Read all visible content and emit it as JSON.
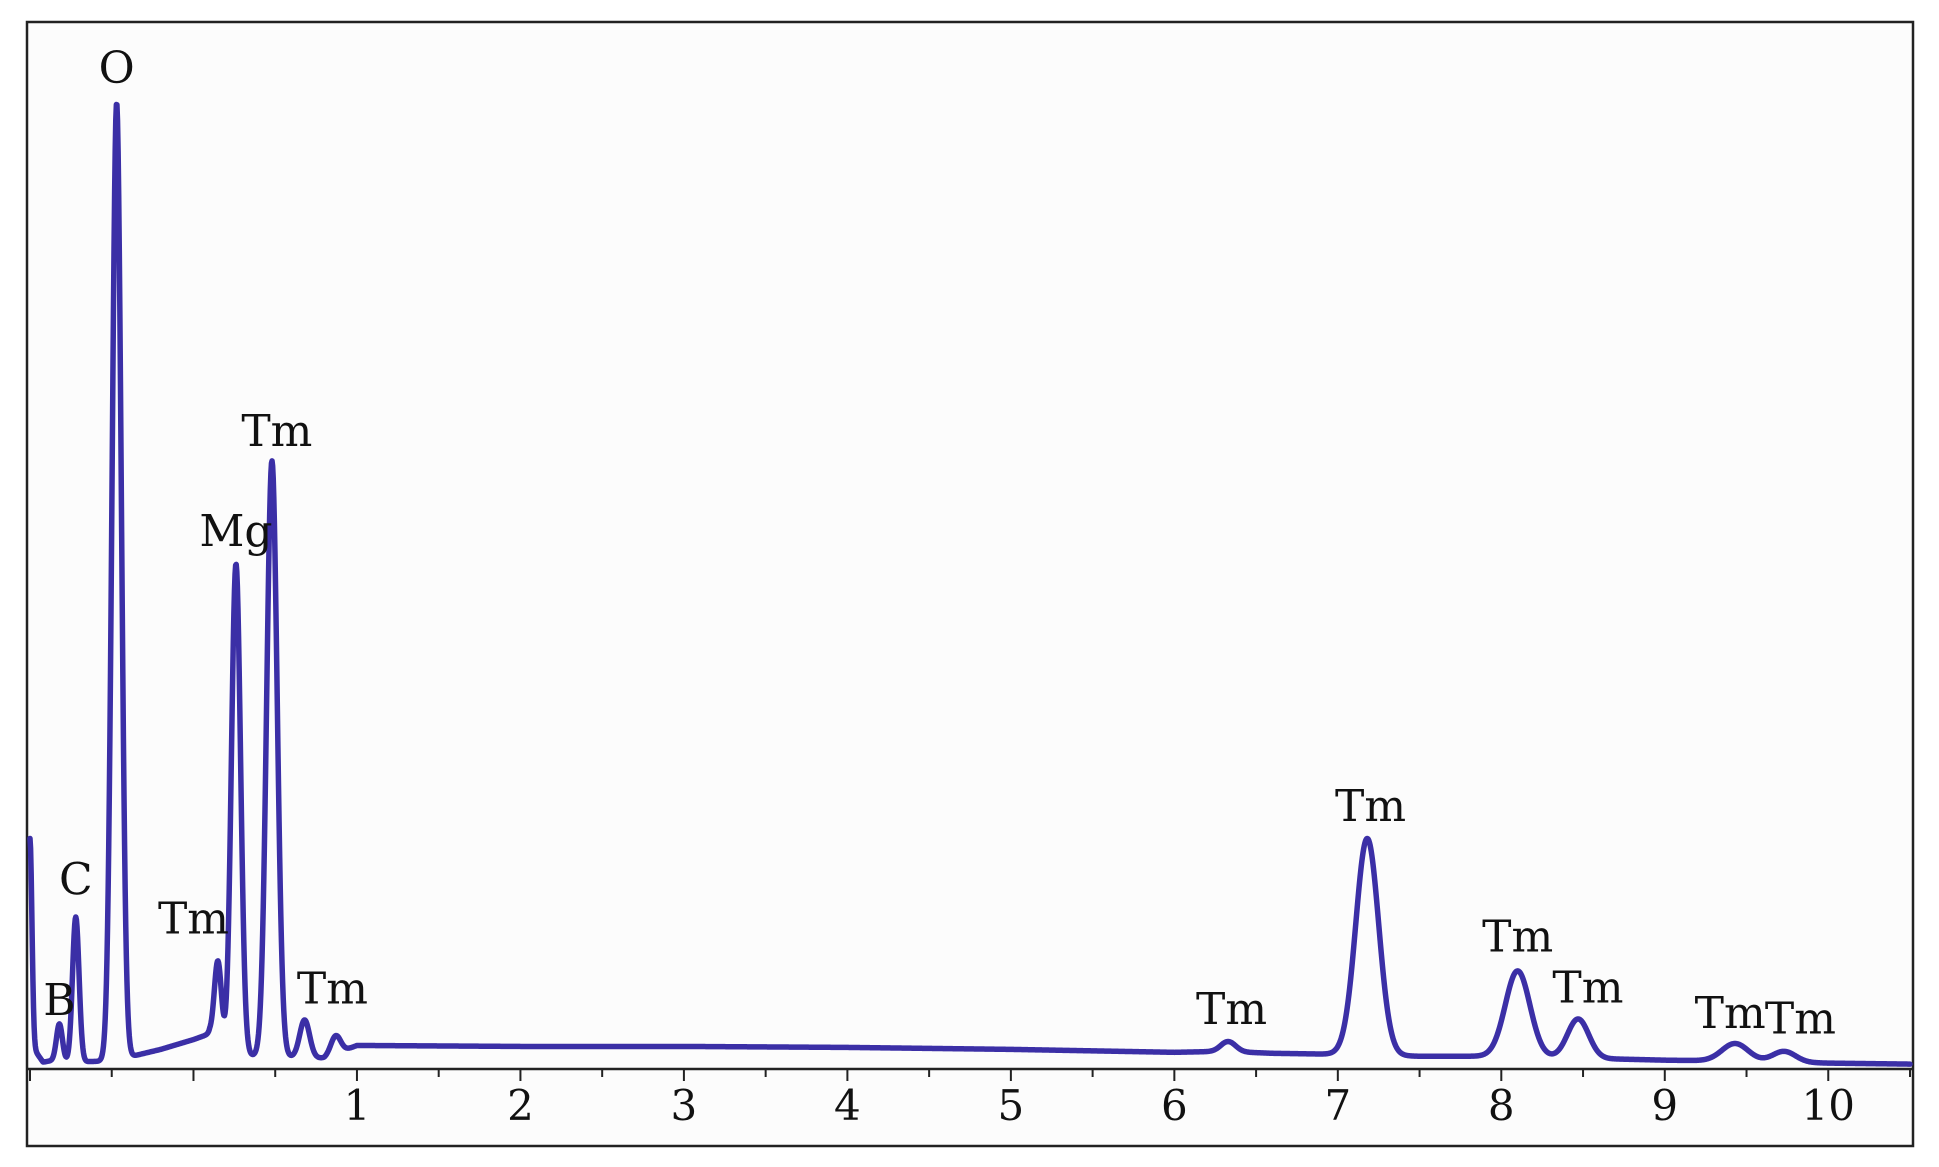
{
  "chart_data": {
    "type": "line",
    "title": "",
    "xlabel": "",
    "ylabel": "",
    "xlim": [
      -1.0,
      10.5
    ],
    "ylim": [
      0,
      100
    ],
    "grid": false,
    "legend": "none",
    "x_ticks": [
      "1",
      "2",
      "3",
      "4",
      "5",
      "6",
      "7",
      "8",
      "9",
      "10"
    ],
    "x_tick_values": [
      1,
      2,
      3,
      4,
      5,
      6,
      7,
      8,
      9,
      10
    ],
    "colors": {
      "line": "#3b2fa6",
      "axis": "#222222",
      "background": "#fcfcfc"
    },
    "baseline": [
      [
        -1.0,
        2.6
      ],
      [
        -0.92,
        0.7
      ],
      [
        -0.85,
        0.9
      ],
      [
        -0.75,
        0.7
      ],
      [
        -0.55,
        0.8
      ],
      [
        -0.4,
        1.2
      ],
      [
        -0.2,
        2.0
      ],
      [
        0.0,
        3.0
      ],
      [
        0.1,
        3.6
      ],
      [
        0.2,
        1.4
      ],
      [
        0.5,
        1.3
      ],
      [
        0.8,
        1.1
      ],
      [
        1.0,
        2.4
      ],
      [
        2.0,
        2.3
      ],
      [
        3.0,
        2.3
      ],
      [
        4.0,
        2.2
      ],
      [
        5.0,
        2.0
      ],
      [
        6.0,
        1.7
      ],
      [
        6.3,
        1.8
      ],
      [
        6.6,
        1.6
      ],
      [
        7.0,
        1.5
      ],
      [
        7.5,
        1.3
      ],
      [
        8.0,
        1.3
      ],
      [
        8.5,
        1.1
      ],
      [
        9.0,
        0.9
      ],
      [
        9.5,
        0.8
      ],
      [
        10.0,
        0.6
      ],
      [
        10.5,
        0.5
      ]
    ],
    "peaks": [
      {
        "label": "",
        "x": -1.0,
        "y": 23.5,
        "width": 0.012
      },
      {
        "label": "B",
        "x": -0.82,
        "y": 4.6,
        "width": 0.018
      },
      {
        "label": "C",
        "x": -0.72,
        "y": 15.5,
        "width": 0.02
      },
      {
        "label": "O",
        "x": -0.47,
        "y": 98.5,
        "width": 0.028
      },
      {
        "label": "Tm",
        "x": 0.15,
        "y": 11.0,
        "width": 0.022
      },
      {
        "label": "Mg",
        "x": 0.26,
        "y": 51.5,
        "width": 0.028
      },
      {
        "label": "Tm",
        "x": 0.48,
        "y": 62.0,
        "width": 0.032
      },
      {
        "label": "Tm",
        "x": 0.68,
        "y": 5.0,
        "width": 0.03
      },
      {
        "label": "",
        "x": 0.87,
        "y": 3.4,
        "width": 0.03
      },
      {
        "label": "Tm",
        "x": 6.33,
        "y": 2.8,
        "width": 0.045
      },
      {
        "label": "Tm",
        "x": 7.18,
        "y": 23.5,
        "width": 0.07
      },
      {
        "label": "Tm",
        "x": 8.1,
        "y": 10.0,
        "width": 0.075
      },
      {
        "label": "Tm",
        "x": 8.47,
        "y": 5.1,
        "width": 0.065
      },
      {
        "label": "Tm",
        "x": 9.43,
        "y": 2.6,
        "width": 0.08
      },
      {
        "label": "Tm",
        "x": 9.73,
        "y": 1.8,
        "width": 0.07
      }
    ],
    "labels": [
      {
        "text": "B",
        "x": -0.82,
        "y": 5.5
      },
      {
        "text": "C",
        "x": -0.72,
        "y": 17.8
      },
      {
        "text": "O",
        "x": -0.47,
        "y": 100.5
      },
      {
        "text": "Tm",
        "x": 0.0,
        "y": 13.8
      },
      {
        "text": "Mg",
        "x": 0.26,
        "y": 53.3
      },
      {
        "text": "Tm",
        "x": 0.51,
        "y": 63.5
      },
      {
        "text": "Tm",
        "x": 0.85,
        "y": 6.7
      },
      {
        "text": "Tm",
        "x": 6.35,
        "y": 4.6
      },
      {
        "text": "Tm",
        "x": 7.2,
        "y": 25.3
      },
      {
        "text": "Tm",
        "x": 8.1,
        "y": 12.0
      },
      {
        "text": "Tm",
        "x": 8.53,
        "y": 6.8
      },
      {
        "text": "Tm",
        "x": 9.4,
        "y": 4.2
      },
      {
        "text": "Tm",
        "x": 9.83,
        "y": 3.6
      }
    ]
  }
}
